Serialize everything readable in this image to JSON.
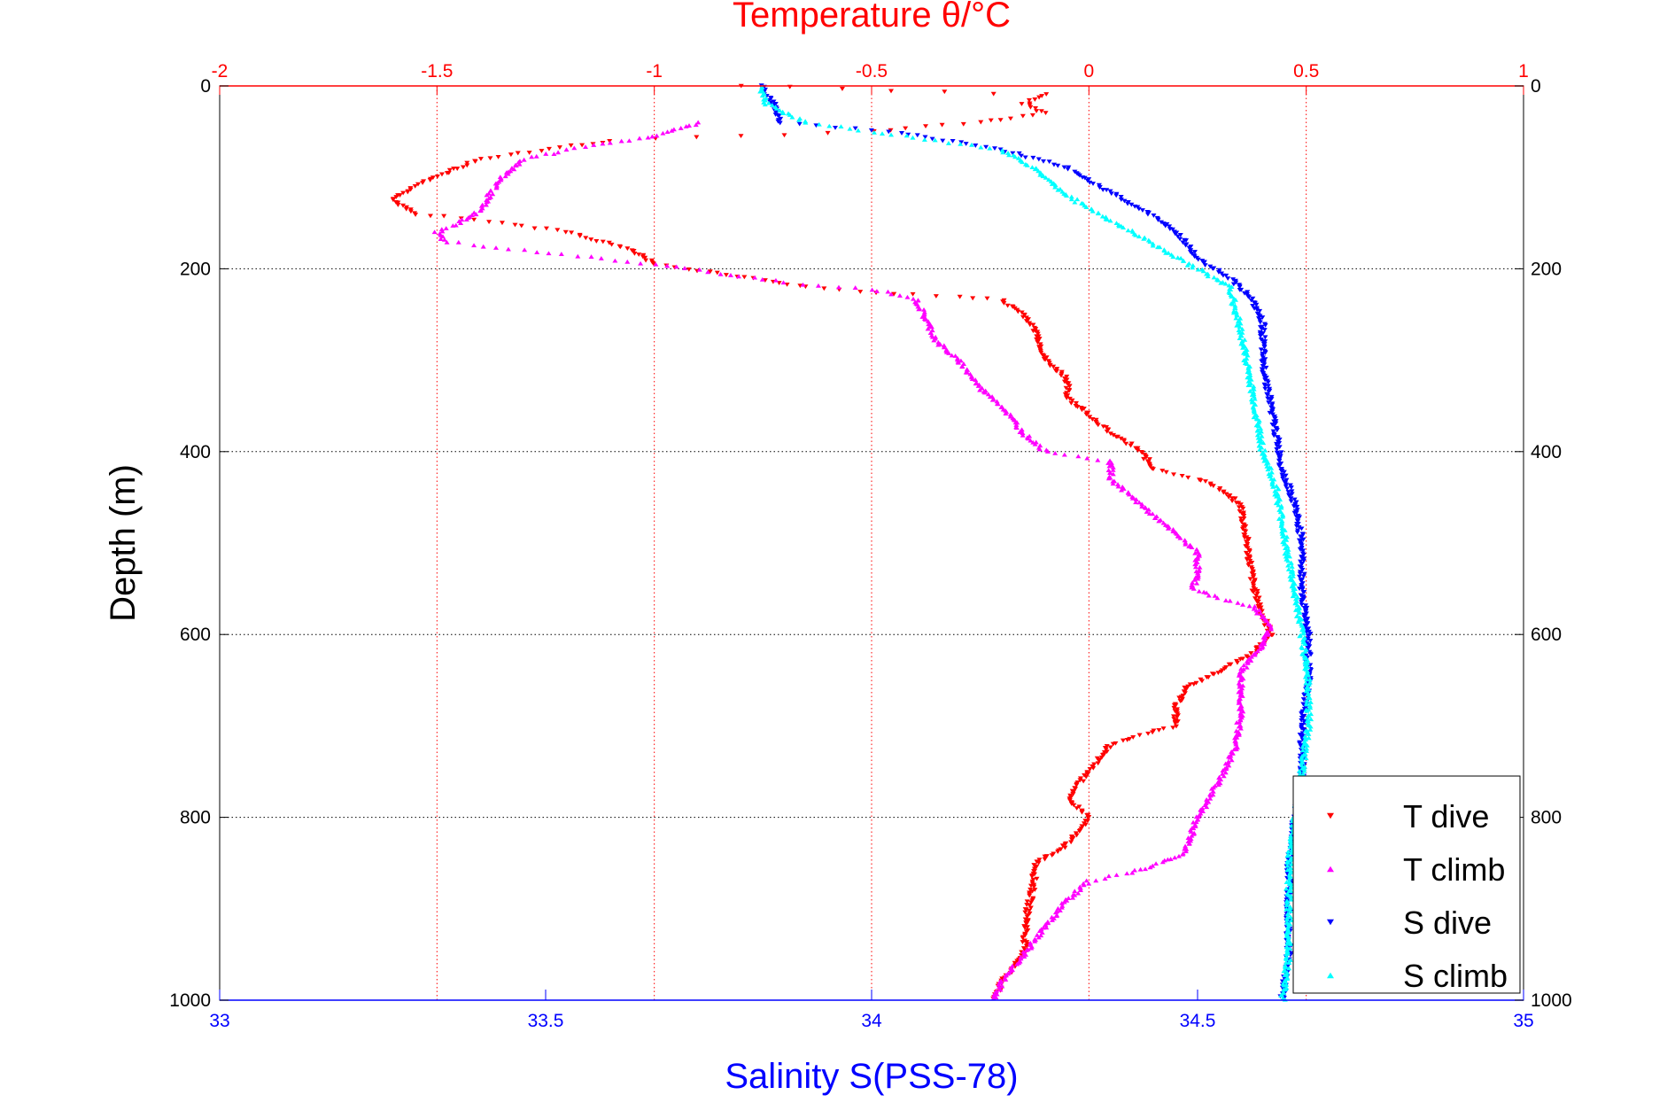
{
  "chart_data": {
    "type": "scatter",
    "title": "Temperature θ/°C",
    "xlabel": "Salinity S(PSS-78)",
    "ylabel": "Depth (m)",
    "x_bottom": {
      "label": "Salinity S(PSS-78)",
      "range": [
        33,
        35
      ],
      "ticks": [
        "33",
        "33.5",
        "34",
        "34.5",
        "35"
      ],
      "color": "#0000ff"
    },
    "x_top": {
      "label": "Temperature θ/°C",
      "range": [
        -2,
        1
      ],
      "ticks": [
        "-2",
        "-1.5",
        "-1",
        "-0.5",
        "0",
        "0.5",
        "1"
      ],
      "color": "#ff0000"
    },
    "y": {
      "range": [
        0,
        1000
      ],
      "reversed": true,
      "ticks": [
        "0",
        "200",
        "400",
        "600",
        "800",
        "1000"
      ]
    },
    "grid": true,
    "legend": {
      "placement": "bottom-right"
    },
    "series": [
      {
        "name": "T dive",
        "axis": "temperature",
        "marker": "triangle-down",
        "color": "#ff0000",
        "points": [
          [
            -0.8,
            0
          ],
          [
            -0.1,
            10
          ],
          [
            -0.15,
            20
          ],
          [
            -0.1,
            30
          ],
          [
            -0.25,
            40
          ],
          [
            -0.5,
            50
          ],
          [
            -1.1,
            60
          ],
          [
            -1.4,
            80
          ],
          [
            -1.45,
            90
          ],
          [
            -1.55,
            110
          ],
          [
            -1.6,
            125
          ],
          [
            -1.55,
            140
          ],
          [
            -1.35,
            150
          ],
          [
            -1.2,
            160
          ],
          [
            -1.05,
            180
          ],
          [
            -1.0,
            195
          ],
          [
            -0.85,
            205
          ],
          [
            -0.65,
            220
          ],
          [
            -0.45,
            228
          ],
          [
            -0.3,
            230
          ],
          [
            -0.2,
            235
          ],
          [
            -0.15,
            250
          ],
          [
            -0.12,
            270
          ],
          [
            -0.1,
            300
          ],
          [
            -0.05,
            320
          ],
          [
            -0.05,
            340
          ],
          [
            0.0,
            360
          ],
          [
            0.05,
            380
          ],
          [
            0.12,
            400
          ],
          [
            0.15,
            420
          ],
          [
            0.25,
            430
          ],
          [
            0.3,
            440
          ],
          [
            0.35,
            460
          ],
          [
            0.36,
            490
          ],
          [
            0.37,
            520
          ],
          [
            0.38,
            550
          ],
          [
            0.4,
            580
          ],
          [
            0.42,
            600
          ],
          [
            0.38,
            620
          ],
          [
            0.3,
            640
          ],
          [
            0.22,
            660
          ],
          [
            0.2,
            680
          ],
          [
            0.2,
            700
          ],
          [
            0.05,
            720
          ],
          [
            0.0,
            750
          ],
          [
            -0.05,
            780
          ],
          [
            0.0,
            800
          ],
          [
            -0.05,
            830
          ],
          [
            -0.12,
            850
          ],
          [
            -0.13,
            880
          ],
          [
            -0.14,
            900
          ],
          [
            -0.15,
            950
          ],
          [
            -0.2,
            980
          ],
          [
            -0.22,
            1000
          ]
        ]
      },
      {
        "name": "T climb",
        "axis": "temperature",
        "marker": "triangle-up",
        "color": "#ff00ff",
        "points": [
          [
            -0.9,
            40
          ],
          [
            -1.0,
            55
          ],
          [
            -1.1,
            62
          ],
          [
            -1.2,
            70
          ],
          [
            -1.3,
            80
          ],
          [
            -1.35,
            100
          ],
          [
            -1.38,
            120
          ],
          [
            -1.4,
            135
          ],
          [
            -1.45,
            150
          ],
          [
            -1.5,
            160
          ],
          [
            -1.48,
            170
          ],
          [
            -1.3,
            180
          ],
          [
            -1.0,
            195
          ],
          [
            -0.85,
            205
          ],
          [
            -0.7,
            215
          ],
          [
            -0.5,
            222
          ],
          [
            -0.4,
            232
          ],
          [
            -0.38,
            250
          ],
          [
            -0.35,
            280
          ],
          [
            -0.3,
            300
          ],
          [
            -0.25,
            330
          ],
          [
            -0.2,
            350
          ],
          [
            -0.15,
            380
          ],
          [
            -0.1,
            400
          ],
          [
            0.05,
            410
          ],
          [
            0.05,
            430
          ],
          [
            0.1,
            450
          ],
          [
            0.15,
            470
          ],
          [
            0.2,
            490
          ],
          [
            0.25,
            510
          ],
          [
            0.25,
            530
          ],
          [
            0.24,
            550
          ],
          [
            0.3,
            560
          ],
          [
            0.38,
            570
          ],
          [
            0.42,
            590
          ],
          [
            0.4,
            610
          ],
          [
            0.35,
            640
          ],
          [
            0.35,
            680
          ],
          [
            0.34,
            720
          ],
          [
            0.3,
            760
          ],
          [
            0.25,
            800
          ],
          [
            0.22,
            840
          ],
          [
            0.1,
            860
          ],
          [
            0.0,
            870
          ],
          [
            -0.05,
            890
          ],
          [
            -0.1,
            920
          ],
          [
            -0.15,
            950
          ],
          [
            -0.2,
            980
          ],
          [
            -0.22,
            1000
          ]
        ]
      },
      {
        "name": "S dive",
        "axis": "salinity",
        "marker": "triangle-down",
        "color": "#0000ff",
        "points": [
          [
            33.83,
            0
          ],
          [
            33.85,
            20
          ],
          [
            33.86,
            40
          ],
          [
            34.03,
            50
          ],
          [
            34.2,
            70
          ],
          [
            34.3,
            90
          ],
          [
            34.35,
            110
          ],
          [
            34.4,
            130
          ],
          [
            34.45,
            150
          ],
          [
            34.48,
            170
          ],
          [
            34.5,
            190
          ],
          [
            34.55,
            210
          ],
          [
            34.58,
            230
          ],
          [
            34.6,
            260
          ],
          [
            34.6,
            300
          ],
          [
            34.61,
            340
          ],
          [
            34.62,
            380
          ],
          [
            34.63,
            420
          ],
          [
            34.65,
            460
          ],
          [
            34.66,
            500
          ],
          [
            34.66,
            550
          ],
          [
            34.67,
            600
          ],
          [
            34.67,
            650
          ],
          [
            34.66,
            700
          ],
          [
            34.66,
            750
          ],
          [
            34.65,
            800
          ],
          [
            34.64,
            850
          ],
          [
            34.64,
            900
          ],
          [
            34.64,
            950
          ],
          [
            34.63,
            1000
          ]
        ]
      },
      {
        "name": "S climb",
        "axis": "salinity",
        "marker": "triangle-up",
        "color": "#00ffff",
        "points": [
          [
            33.83,
            0
          ],
          [
            33.84,
            20
          ],
          [
            33.9,
            40
          ],
          [
            34.0,
            50
          ],
          [
            34.1,
            60
          ],
          [
            34.2,
            70
          ],
          [
            34.25,
            90
          ],
          [
            34.3,
            120
          ],
          [
            34.35,
            140
          ],
          [
            34.4,
            160
          ],
          [
            34.45,
            180
          ],
          [
            34.5,
            200
          ],
          [
            34.55,
            220
          ],
          [
            34.56,
            250
          ],
          [
            34.57,
            280
          ],
          [
            34.58,
            320
          ],
          [
            34.59,
            360
          ],
          [
            34.6,
            400
          ],
          [
            34.62,
            440
          ],
          [
            34.63,
            480
          ],
          [
            34.64,
            520
          ],
          [
            34.65,
            560
          ],
          [
            34.66,
            600
          ],
          [
            34.67,
            650
          ],
          [
            34.67,
            700
          ],
          [
            34.66,
            750
          ],
          [
            34.65,
            800
          ],
          [
            34.64,
            850
          ],
          [
            34.64,
            900
          ],
          [
            34.64,
            950
          ],
          [
            34.63,
            1000
          ]
        ]
      }
    ]
  }
}
